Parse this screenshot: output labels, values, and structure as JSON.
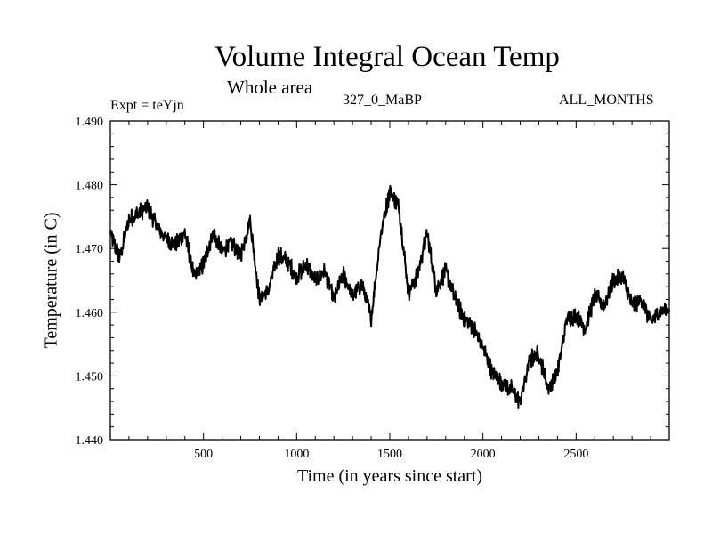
{
  "chart_data": {
    "type": "line",
    "title": "Volume Integral Ocean Temp",
    "subtitle": "Whole area",
    "experiment_label": "Expt = teYjn",
    "period_label": "327_0_MaBP",
    "months_label": "ALL_MONTHS",
    "xlabel": "Time (in years since start)",
    "ylabel": "Temperature (in C)",
    "xlim": [
      0,
      3000
    ],
    "ylim": [
      1.44,
      1.49
    ],
    "x_ticks": [
      500,
      1000,
      1500,
      2000,
      2500
    ],
    "x_tick_labels": [
      "500",
      "1000",
      "1500",
      "2000",
      "2500"
    ],
    "y_ticks": [
      1.44,
      1.45,
      1.46,
      1.47,
      1.48,
      1.49
    ],
    "y_tick_labels": [
      "1.440",
      "1.450",
      "1.460",
      "1.470",
      "1.480",
      "1.490"
    ],
    "series": [
      {
        "name": "Volume Integral Ocean Temp",
        "x": [
          0,
          50,
          100,
          150,
          200,
          250,
          300,
          350,
          400,
          450,
          500,
          550,
          600,
          650,
          700,
          750,
          800,
          850,
          900,
          950,
          1000,
          1050,
          1100,
          1150,
          1200,
          1250,
          1300,
          1350,
          1400,
          1450,
          1500,
          1550,
          1600,
          1650,
          1700,
          1750,
          1800,
          1850,
          1900,
          1950,
          2000,
          2050,
          2100,
          2150,
          2200,
          2250,
          2300,
          2350,
          2400,
          2450,
          2500,
          2550,
          2600,
          2650,
          2700,
          2750,
          2800,
          2850,
          2900,
          2950,
          3000
        ],
        "values": [
          1.4725,
          1.4685,
          1.4745,
          1.4755,
          1.4765,
          1.4735,
          1.4715,
          1.4705,
          1.4725,
          1.4655,
          1.4675,
          1.4725,
          1.4695,
          1.471,
          1.469,
          1.4745,
          1.462,
          1.4635,
          1.469,
          1.468,
          1.4655,
          1.4675,
          1.465,
          1.4665,
          1.462,
          1.466,
          1.4625,
          1.4645,
          1.459,
          1.472,
          1.479,
          1.4765,
          1.463,
          1.466,
          1.4725,
          1.4635,
          1.4665,
          1.462,
          1.459,
          1.4575,
          1.4545,
          1.4505,
          1.449,
          1.448,
          1.446,
          1.4525,
          1.4535,
          1.448,
          1.4505,
          1.459,
          1.4595,
          1.4575,
          1.4625,
          1.461,
          1.465,
          1.4655,
          1.461,
          1.462,
          1.4585,
          1.46,
          1.4605
        ]
      }
    ]
  }
}
